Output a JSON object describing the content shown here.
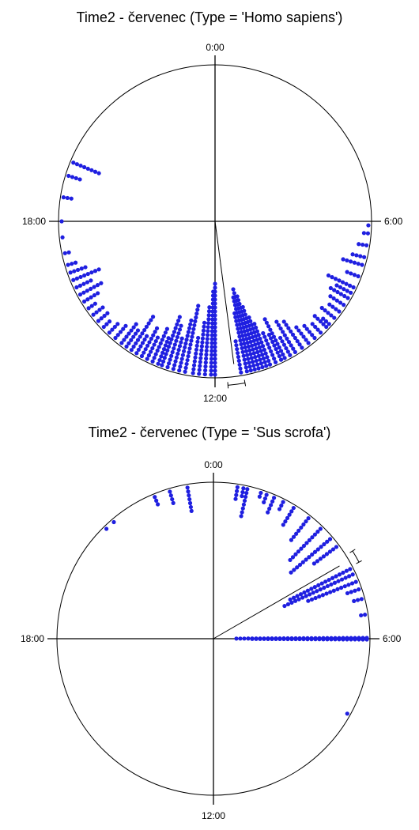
{
  "chart_data": [
    {
      "type": "scatter",
      "subtype": "circular",
      "title": "Time2 - červenec (Type = 'Homo sapiens')",
      "tick_labels": {
        "top": "0:00",
        "right": "6:00",
        "bottom": "12:00",
        "left": "18:00"
      },
      "mean_vector": {
        "angle_h": 11.5,
        "length": 0.92,
        "ci_low_h": 11.3,
        "ci_high_h": 11.7
      },
      "point_color": "#1f1fe0",
      "rayleigh_stacks": [
        {
          "t": 11.35,
          "n": 9
        },
        {
          "t": 11.2,
          "n": 16
        },
        {
          "t": 11.1,
          "n": 20
        },
        {
          "t": 11.0,
          "n": 22
        },
        {
          "t": 10.9,
          "n": 20
        },
        {
          "t": 10.8,
          "n": 17
        },
        {
          "t": 10.7,
          "n": 14
        },
        {
          "t": 10.6,
          "n": 12
        },
        {
          "t": 10.45,
          "n": 9
        },
        {
          "t": 10.3,
          "n": 8
        },
        {
          "t": 10.2,
          "n": 12
        },
        {
          "t": 10.05,
          "n": 6
        },
        {
          "t": 9.9,
          "n": 10
        },
        {
          "t": 9.7,
          "n": 9
        },
        {
          "t": 9.5,
          "n": 6
        },
        {
          "t": 9.3,
          "n": 5
        },
        {
          "t": 9.1,
          "n": 4
        },
        {
          "t": 8.9,
          "n": 5
        },
        {
          "t": 8.8,
          "n": 3
        },
        {
          "t": 8.6,
          "n": 5
        },
        {
          "t": 12.0,
          "n": 24
        },
        {
          "t": 12.1,
          "n": 22
        },
        {
          "t": 12.25,
          "n": 18
        },
        {
          "t": 12.4,
          "n": 14
        },
        {
          "t": 12.55,
          "n": 10
        },
        {
          "t": 12.75,
          "n": 18
        },
        {
          "t": 12.9,
          "n": 14
        },
        {
          "t": 13.05,
          "n": 9
        },
        {
          "t": 13.2,
          "n": 12
        },
        {
          "t": 13.35,
          "n": 14
        },
        {
          "t": 13.45,
          "n": 8
        },
        {
          "t": 13.6,
          "n": 10
        },
        {
          "t": 13.75,
          "n": 7
        },
        {
          "t": 13.9,
          "n": 9
        },
        {
          "t": 14.05,
          "n": 6
        },
        {
          "t": 14.2,
          "n": 11
        },
        {
          "t": 14.35,
          "n": 6
        },
        {
          "t": 14.5,
          "n": 7
        },
        {
          "t": 14.7,
          "n": 5
        },
        {
          "t": 14.9,
          "n": 4
        },
        {
          "t": 15.1,
          "n": 3
        },
        {
          "t": 15.3,
          "n": 4
        },
        {
          "t": 15.5,
          "n": 4
        },
        {
          "t": 15.7,
          "n": 3
        },
        {
          "t": 15.9,
          "n": 5
        },
        {
          "t": 16.1,
          "n": 7
        },
        {
          "t": 16.3,
          "n": 5
        },
        {
          "t": 16.5,
          "n": 8
        },
        {
          "t": 16.7,
          "n": 5
        },
        {
          "t": 16.9,
          "n": 3
        },
        {
          "t": 17.2,
          "n": 2
        },
        {
          "t": 17.6,
          "n": 1
        },
        {
          "t": 18.0,
          "n": 1
        },
        {
          "t": 18.6,
          "n": 3
        },
        {
          "t": 19.15,
          "n": 4
        },
        {
          "t": 19.5,
          "n": 8
        },
        {
          "t": 6.1,
          "n": 1
        },
        {
          "t": 6.3,
          "n": 2
        },
        {
          "t": 6.6,
          "n": 3
        },
        {
          "t": 6.9,
          "n": 4
        },
        {
          "t": 7.1,
          "n": 6
        },
        {
          "t": 7.4,
          "n": 4
        },
        {
          "t": 7.7,
          "n": 8
        },
        {
          "t": 7.85,
          "n": 5
        },
        {
          "t": 8.0,
          "n": 6
        },
        {
          "t": 8.2,
          "n": 5
        },
        {
          "t": 8.4,
          "n": 4
        }
      ]
    },
    {
      "type": "scatter",
      "subtype": "circular",
      "title": "Time2 - červenec (Type = 'Sus scrofa')",
      "tick_labels": {
        "top": "0:00",
        "right": "6:00",
        "bottom": "12:00",
        "left": "18:00"
      },
      "mean_vector": {
        "angle_h": 4.0,
        "length": 0.93,
        "ci_low_h": 3.85,
        "ci_high_h": 4.15
      },
      "point_color": "#1f1fe0",
      "rayleigh_stacks": [
        {
          "t": 4.2,
          "n": 18
        },
        {
          "t": 4.35,
          "n": 20
        },
        {
          "t": 4.55,
          "n": 14
        },
        {
          "t": 4.75,
          "n": 4
        },
        {
          "t": 5.0,
          "n": 3
        },
        {
          "t": 5.4,
          "n": 2
        },
        {
          "t": 5.98,
          "n": 34
        },
        {
          "t": 6.02,
          "n": 30
        },
        {
          "t": 3.55,
          "n": 8
        },
        {
          "t": 3.3,
          "n": 14
        },
        {
          "t": 2.95,
          "n": 12
        },
        {
          "t": 2.55,
          "n": 8
        },
        {
          "t": 2.1,
          "n": 6
        },
        {
          "t": 1.8,
          "n": 3
        },
        {
          "t": 1.55,
          "n": 5
        },
        {
          "t": 1.35,
          "n": 3
        },
        {
          "t": 1.2,
          "n": 2
        },
        {
          "t": 0.85,
          "n": 8
        },
        {
          "t": 0.75,
          "n": 3
        },
        {
          "t": 0.6,
          "n": 4
        },
        {
          "t": 22.5,
          "n": 3
        },
        {
          "t": 22.9,
          "n": 4
        },
        {
          "t": 23.35,
          "n": 7
        },
        {
          "t": 21.05,
          "n": 1
        },
        {
          "t": 21.3,
          "n": 1
        },
        {
          "t": 7.95,
          "n": 1
        }
      ]
    }
  ]
}
